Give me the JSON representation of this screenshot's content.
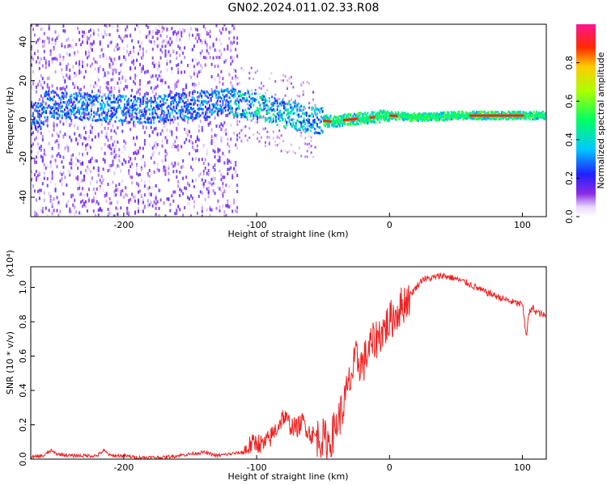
{
  "title": "GN02.2024.011.02.33.R08",
  "chart_data": [
    {
      "type": "heatmap",
      "xlabel": "Height of straight line (km)",
      "ylabel": "Frequency (Hz)",
      "xlim": [
        -270,
        118
      ],
      "ylim": [
        -50,
        49
      ],
      "xticks": [
        -200,
        -100,
        0,
        100
      ],
      "yticks": [
        -40,
        -20,
        0,
        20,
        40
      ],
      "colorbar": {
        "label": "Normalized spectral amplitude",
        "range": [
          0,
          1
        ],
        "ticks": [
          "0.0",
          "0.2",
          "0.4",
          "0.6",
          "0.8"
        ]
      },
      "frequency_track": [
        {
          "x": -260,
          "y": 8
        },
        {
          "x": -220,
          "y": 6
        },
        {
          "x": -180,
          "y": 5
        },
        {
          "x": -140,
          "y": 8
        },
        {
          "x": -120,
          "y": 9
        },
        {
          "x": -100,
          "y": 7
        },
        {
          "x": -80,
          "y": 3
        },
        {
          "x": -60,
          "y": 0
        },
        {
          "x": -45,
          "y": -1
        },
        {
          "x": -30,
          "y": 0
        },
        {
          "x": -15,
          "y": 1
        },
        {
          "x": 0,
          "y": 2
        },
        {
          "x": 20,
          "y": 1
        },
        {
          "x": 50,
          "y": 2
        },
        {
          "x": 80,
          "y": 2
        },
        {
          "x": 118,
          "y": 2
        }
      ]
    },
    {
      "type": "line",
      "xlabel": "Height of straight line (km)",
      "ylabel": "SNR (10 * v/v)",
      "scale_label": "(x10⁴)",
      "xlim": [
        -270,
        118
      ],
      "ylim": [
        0,
        1.12
      ],
      "xticks": [
        -200,
        -100,
        0,
        100
      ],
      "yticks": [
        "0.0",
        "0.2",
        "0.4",
        "0.6",
        "0.8",
        "1.0"
      ],
      "series": [
        {
          "color": "#ee2222",
          "x": [
            -270,
            -260,
            -255,
            -250,
            -240,
            -230,
            -220,
            -215,
            -210,
            -200,
            -190,
            -180,
            -170,
            -160,
            -150,
            -140,
            -135,
            -130,
            -120,
            -110,
            -105,
            -100,
            -95,
            -90,
            -85,
            -80,
            -75,
            -70,
            -65,
            -60,
            -55,
            -50,
            -45,
            -40,
            -35,
            -30,
            -25,
            -20,
            -15,
            -10,
            -5,
            0,
            5,
            10,
            15,
            20,
            25,
            30,
            40,
            50,
            60,
            70,
            80,
            90,
            100,
            103,
            105,
            108,
            110,
            118
          ],
          "y": [
            0.01,
            0.02,
            0.05,
            0.03,
            0.02,
            0.02,
            0.02,
            0.05,
            0.02,
            0.02,
            0.01,
            0.01,
            0.01,
            0.02,
            0.03,
            0.04,
            0.03,
            0.02,
            0.03,
            0.04,
            0.08,
            0.1,
            0.08,
            0.12,
            0.18,
            0.25,
            0.2,
            0.18,
            0.22,
            0.15,
            0.13,
            0.12,
            0.1,
            0.2,
            0.3,
            0.45,
            0.58,
            0.55,
            0.65,
            0.7,
            0.75,
            0.8,
            0.85,
            0.9,
            0.95,
            1.0,
            1.05,
            1.05,
            1.07,
            1.05,
            1.02,
            0.98,
            0.95,
            0.92,
            0.9,
            0.72,
            0.85,
            0.88,
            0.86,
            0.83
          ]
        }
      ]
    }
  ]
}
